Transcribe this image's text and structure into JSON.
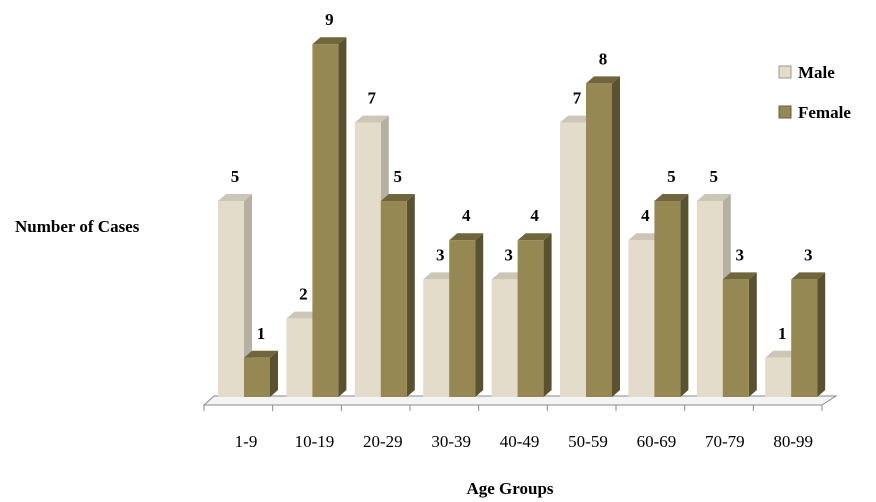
{
  "chart_data": {
    "type": "bar",
    "title": "",
    "xlabel": "Age Groups",
    "ylabel": "Number of Cases",
    "categories": [
      "1-9",
      "10-19",
      "20-29",
      "30-39",
      "40-49",
      "50-59",
      "60-69",
      "70-79",
      "80-99"
    ],
    "series": [
      {
        "name": "Male",
        "values": [
          5,
          2,
          7,
          3,
          3,
          7,
          4,
          5,
          1
        ],
        "color": "#e3dccb"
      },
      {
        "name": "Female",
        "values": [
          1,
          9,
          5,
          4,
          4,
          8,
          5,
          3,
          3
        ],
        "color": "#958852"
      }
    ],
    "ylim": [
      0,
      9
    ],
    "grid": false,
    "legend": "top-right",
    "data_labels": true,
    "style": "3d-clustered-column"
  }
}
